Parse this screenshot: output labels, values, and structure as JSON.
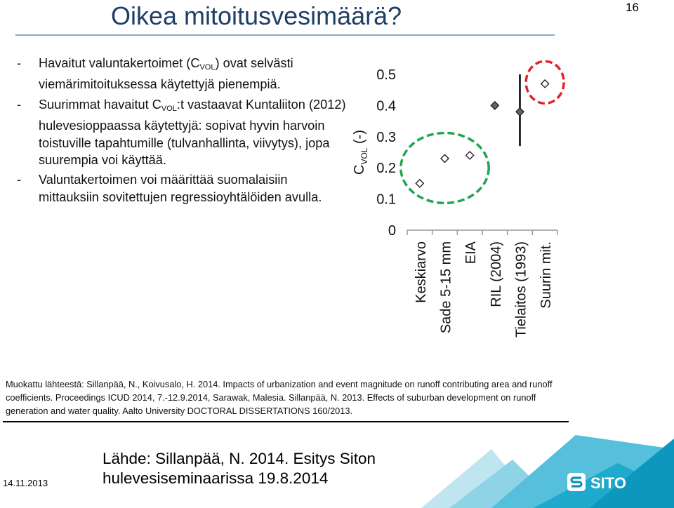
{
  "slide": {
    "title": "Oikea mitoitusvesimäärä?",
    "page_number": "16",
    "bullets": [
      {
        "dash": "-",
        "html": "Havaitut valuntakertoimet (C<sub>VOL</sub>) ovat selvästi viemärimitoituksessa käytettyjä pienempiä."
      },
      {
        "dash": "-",
        "html": "Suurimmat havaitut C<sub>VOL</sub>:t vastaavat Kuntaliiton (2012) hulevesioppaassa käytettyjä: sopivat hyvin harvoin toistuville tapahtumille (tulvanhallinta, viivytys), jopa suurempia voi käyttää."
      },
      {
        "dash": "-",
        "html": "Valuntakertoimen voi määrittää suomalaisiin mittauksiin sovitettujen regressioyhtälöiden avulla."
      }
    ],
    "source_note": "Muokattu lähteestä: Sillanpää, N., Koivusalo, H. 2014. Impacts of urbanization and event magnitude on runoff contributing area and runoff coefficients. Proceedings ICUD 2014, 7.-12.9.2014, Sarawak, Malesia. Sillanpää, N. 2013. Effects of suburban development on runoff generation and water quality. Aalto University DOCTORAL DISSERTATIONS 160/2013.",
    "date": "14.11.2013",
    "footer_source_line1": "Lähde: Sillanpää, N. 2014. Esitys Siton",
    "footer_source_line2": "hulevesiseminaarissa 19.8.2014",
    "logo_text": "SITO"
  },
  "colors": {
    "title": "#1f3f66",
    "title_rule": "#8ea9cf",
    "green_ellipse": "#22a550",
    "red_ellipse": "#e0262a",
    "logo_teal": "#0a93b8",
    "deco_teal": "#08a5c8"
  },
  "chart_data": {
    "type": "scatter",
    "ylabel_main": "C",
    "ylabel_sub": "VOL",
    "ylabel_unit": " (-)",
    "ylim": [
      0,
      0.5
    ],
    "yticks": [
      {
        "v": 0,
        "label": "0"
      },
      {
        "v": 0.1,
        "label": "0.1"
      },
      {
        "v": 0.2,
        "label": "0.2"
      },
      {
        "v": 0.3,
        "label": "0.3"
      },
      {
        "v": 0.4,
        "label": "0.4"
      },
      {
        "v": 0.5,
        "label": "0.5"
      }
    ],
    "categories": [
      "Keskiarvo",
      "Sade 5-15 mm",
      "EIA",
      "RIL (2004)",
      "Tielaitos (1993)",
      "Suurin mit."
    ],
    "values": [
      0.15,
      0.23,
      0.24,
      0.4,
      0.38,
      0.47
    ],
    "filled": [
      false,
      false,
      false,
      true,
      true,
      false
    ],
    "ranges": [
      null,
      null,
      null,
      null,
      [
        0.27,
        0.5
      ],
      null
    ],
    "grid": false,
    "highlights": [
      {
        "from": 0,
        "to": 2,
        "color": "green"
      },
      {
        "from": 5,
        "to": 5,
        "color": "red"
      }
    ]
  }
}
